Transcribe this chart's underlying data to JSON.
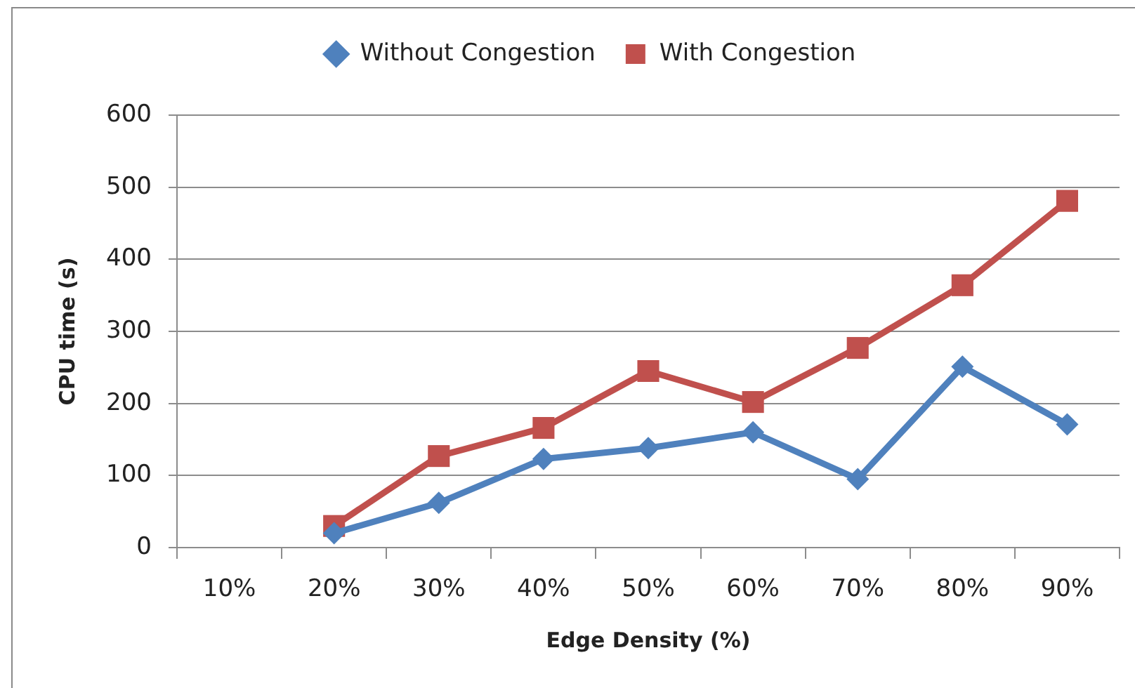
{
  "chart_data": {
    "type": "line",
    "xlabel": "Edge Density (%)",
    "ylabel": "CPU time (s)",
    "categories": [
      "10%",
      "20%",
      "30%",
      "40%",
      "50%",
      "60%",
      "70%",
      "80%",
      "90%"
    ],
    "series": [
      {
        "name": "Without Congestion",
        "color": "#4f81bd",
        "marker": "diamond",
        "values": [
          null,
          20,
          62,
          123,
          138,
          160,
          95,
          251,
          171
        ]
      },
      {
        "name": "With Congestion",
        "color": "#c0504d",
        "marker": "square",
        "values": [
          null,
          30,
          127,
          166,
          245,
          202,
          277,
          364,
          481
        ]
      }
    ],
    "ylim": [
      0,
      600
    ],
    "yticks": [
      0,
      100,
      200,
      300,
      400,
      500,
      600
    ],
    "grid": "y",
    "legend": "top"
  }
}
